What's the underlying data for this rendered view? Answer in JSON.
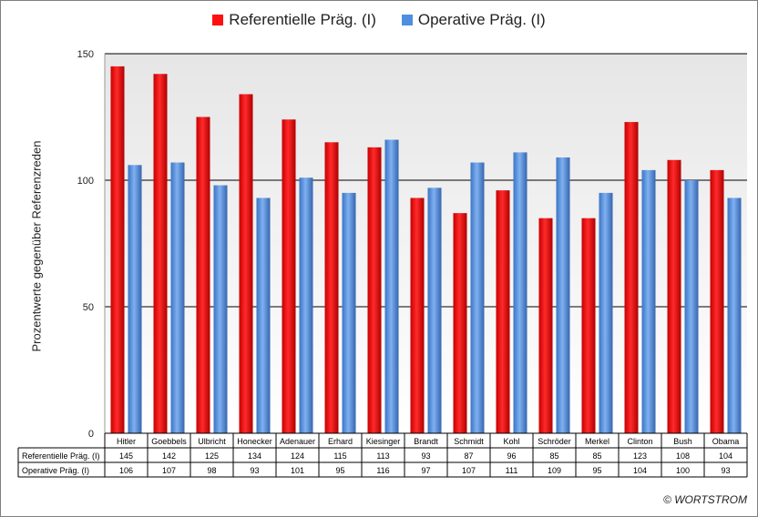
{
  "chart_data": {
    "type": "bar",
    "ylabel": "Prozentwerte  gegenüber Referenzreden",
    "ylim": [
      0,
      150
    ],
    "yticks": [
      0,
      50,
      100,
      150
    ],
    "grid": true,
    "legend_position": "top",
    "categories": [
      "Hitler",
      "Goebbels",
      "Ulbricht",
      "Honecker",
      "Adenauer",
      "Erhard",
      "Kiesinger",
      "Brandt",
      "Schmidt",
      "Kohl",
      "Schröder",
      "Merkel",
      "Clinton",
      "Bush",
      "Obama"
    ],
    "series": [
      {
        "name": "Referentielle Präg. (I)",
        "table_label": "Referentielle Präg. (I)",
        "color": "#ff1010",
        "values": [
          145,
          142,
          125,
          134,
          124,
          115,
          113,
          93,
          87,
          96,
          85,
          85,
          123,
          108,
          104
        ]
      },
      {
        "name": "Operative Präg. (I)",
        "table_label": "Operative Präg. (I)",
        "color": "#4f8fe0",
        "values": [
          106,
          107,
          98,
          93,
          101,
          95,
          116,
          97,
          107,
          111,
          109,
          95,
          104,
          100,
          93
        ]
      }
    ]
  },
  "copyright": "© WORTSTROM"
}
